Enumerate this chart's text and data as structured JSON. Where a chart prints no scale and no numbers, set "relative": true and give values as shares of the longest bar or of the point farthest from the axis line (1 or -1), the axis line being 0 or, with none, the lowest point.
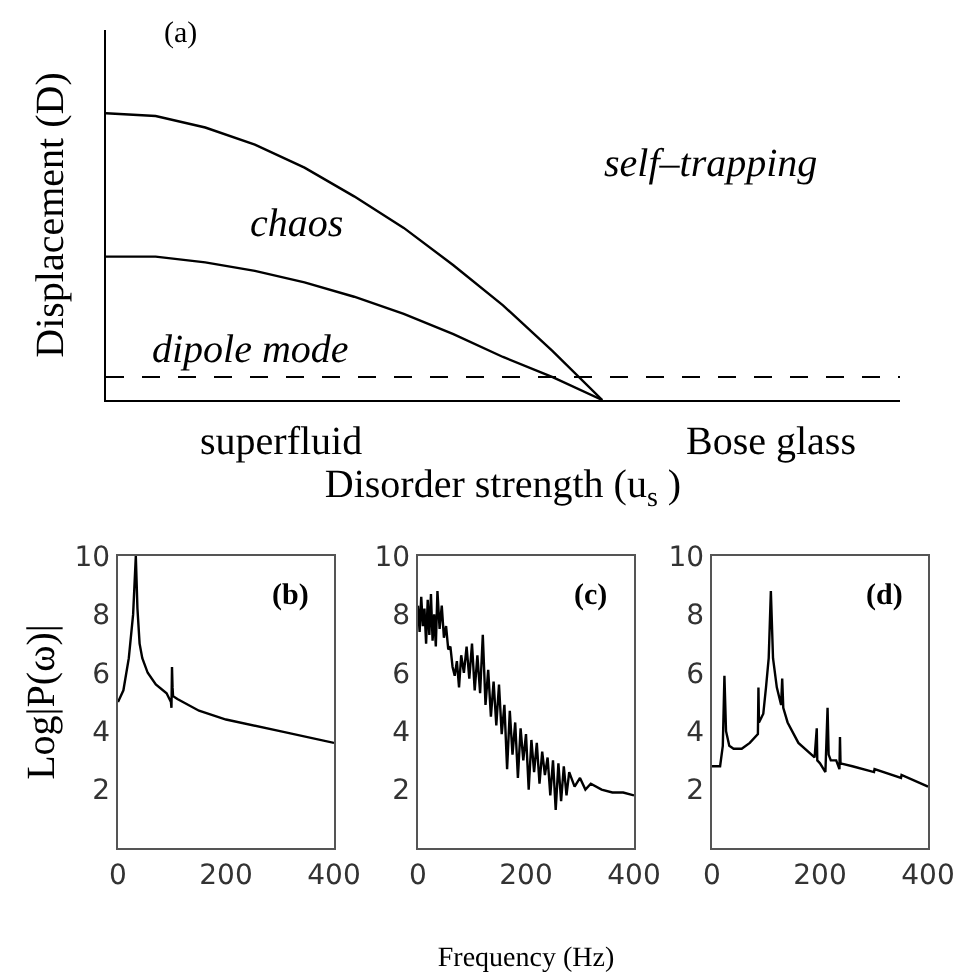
{
  "chart_data": [
    {
      "type": "line",
      "relative": true,
      "xlabel": "Disorder strength (u$_{s}$ )",
      "ylabel": "Displacement (D)",
      "categories": [
        null,
        null,
        null,
        null,
        null,
        null,
        null,
        null,
        null,
        null,
        null,
        null,
        null,
        null,
        null,
        null,
        null
      ],
      "series": [
        {
          "color": "#000000",
          "values": [
            1.0,
            0.99,
            0.95,
            0.89,
            0.81,
            0.71,
            0.6,
            0.47,
            0.33,
            0.17,
            0,
            null,
            null,
            null,
            null,
            null,
            null
          ]
        },
        {
          "color": "#000000",
          "values": [
            0.5,
            0.5,
            0.48,
            0.45,
            0.41,
            0.36,
            0.3,
            0.23,
            0.15,
            0.08,
            0,
            null,
            null,
            null,
            null,
            null,
            null
          ]
        }
      ],
      "ref_lines": [
        {
          "axis": "y",
          "value": 0.08,
          "color": "#000000",
          "line_style": "dashed"
        }
      ],
      "annotations": [
        "(a)",
        "self–trapping",
        "chaos",
        "dipole mode",
        "superfluid",
        "Bose glass"
      ]
    },
    {
      "type": "line",
      "ylabel": "Log|P(ω)|",
      "xlim": [
        0,
        400
      ],
      "xticks": [
        0,
        200,
        400
      ],
      "ylim": [
        0,
        10
      ],
      "yticks": [
        2,
        4,
        6,
        8,
        10
      ],
      "annotations": [
        "(b)"
      ],
      "series": [
        {
          "color": "#000000",
          "x": [
            0,
            10,
            20,
            28,
            33,
            36,
            40,
            45,
            55,
            70,
            90,
            98,
            99,
            100,
            101,
            102,
            110,
            150,
            200,
            300,
            400
          ],
          "values": [
            5.0,
            5.4,
            6.5,
            8.0,
            10.0,
            8.2,
            7.0,
            6.5,
            6.0,
            5.6,
            5.3,
            5.0,
            4.8,
            6.2,
            5.5,
            5.2,
            5.1,
            4.7,
            4.4,
            4.0,
            3.6
          ]
        }
      ]
    },
    {
      "type": "line",
      "xlabel": "Frequency (Hz)",
      "xlim": [
        0,
        400
      ],
      "xticks": [
        0,
        200,
        400
      ],
      "ylim": [
        0,
        10
      ],
      "yticks": [
        2,
        4,
        6,
        8,
        10
      ],
      "annotations": [
        "(c)"
      ],
      "series": [
        {
          "color": "#000000",
          "x": [
            0,
            3,
            6,
            9,
            12,
            15,
            18,
            21,
            24,
            27,
            30,
            33,
            36,
            40,
            44,
            48,
            52,
            56,
            60,
            64,
            68,
            72,
            76,
            80,
            85,
            90,
            95,
            100,
            105,
            110,
            115,
            120,
            125,
            130,
            135,
            140,
            145,
            150,
            155,
            160,
            165,
            170,
            175,
            180,
            185,
            190,
            195,
            200,
            205,
            210,
            215,
            220,
            225,
            230,
            235,
            240,
            245,
            250,
            255,
            260,
            265,
            270,
            275,
            280,
            290,
            300,
            310,
            320,
            340,
            360,
            380,
            400
          ],
          "values": [
            8.3,
            7.4,
            8.6,
            7.6,
            8.2,
            7.0,
            8.5,
            7.3,
            8.7,
            7.1,
            8.0,
            6.9,
            8.8,
            7.5,
            8.3,
            7.2,
            7.6,
            6.8,
            6.9,
            6.2,
            5.9,
            6.4,
            5.5,
            6.6,
            6.0,
            6.9,
            5.8,
            7.0,
            5.4,
            6.6,
            5.3,
            7.3,
            4.9,
            6.1,
            4.5,
            5.7,
            4.2,
            5.6,
            3.9,
            4.9,
            2.7,
            4.7,
            3.2,
            4.3,
            2.4,
            4.1,
            3.0,
            3.9,
            2.0,
            3.7,
            2.6,
            3.6,
            2.2,
            3.3,
            2.5,
            3.1,
            1.8,
            3.0,
            1.3,
            2.9,
            1.6,
            2.8,
            1.8,
            2.6,
            2.1,
            2.4,
            2.0,
            2.2,
            2.0,
            1.9,
            1.9,
            1.8
          ]
        }
      ]
    },
    {
      "type": "line",
      "xlim": [
        0,
        400
      ],
      "xticks": [
        0,
        200,
        400
      ],
      "ylim": [
        0,
        10
      ],
      "yticks": [
        2,
        4,
        6,
        8,
        10
      ],
      "annotations": [
        "(d)"
      ],
      "series": [
        {
          "color": "#000000",
          "x": [
            0,
            15,
            20,
            23,
            26,
            32,
            40,
            55,
            70,
            85,
            86,
            87,
            95,
            100,
            105,
            109,
            113,
            120,
            128,
            130,
            132,
            140,
            160,
            190,
            194,
            195,
            200,
            210,
            214,
            216,
            220,
            230,
            236,
            237,
            238,
            260,
            300,
            301,
            350,
            351,
            400
          ],
          "values": [
            2.8,
            2.8,
            3.5,
            5.9,
            4.0,
            3.5,
            3.4,
            3.4,
            3.6,
            3.9,
            5.5,
            4.3,
            4.6,
            5.5,
            6.5,
            8.8,
            6.5,
            5.5,
            4.9,
            5.8,
            4.8,
            4.3,
            3.6,
            3.1,
            4.1,
            3.0,
            2.9,
            2.6,
            4.8,
            3.2,
            3.0,
            3.0,
            2.7,
            3.8,
            2.9,
            2.8,
            2.6,
            2.7,
            2.4,
            2.5,
            2.1
          ]
        }
      ]
    }
  ]
}
